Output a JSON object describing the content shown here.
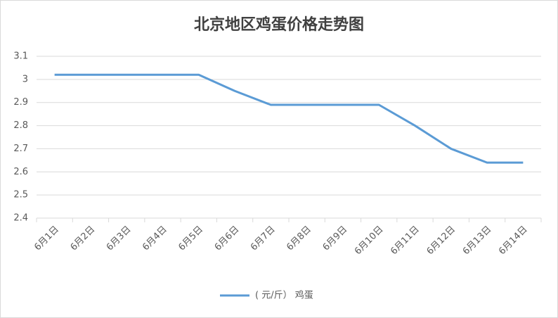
{
  "chart_data": {
    "type": "line",
    "title": "北京地区鸡蛋价格走势图",
    "categories": [
      "6月1日",
      "6月2日",
      "6月3日",
      "6月4日",
      "6月5日",
      "6月6日",
      "6月7日",
      "6月8日",
      "6月9日",
      "6月10日",
      "6月11日",
      "6月12日",
      "6月13日",
      "6月14日"
    ],
    "series": [
      {
        "name": "( 元/斤） 鸡蛋",
        "color": "#5b9bd5",
        "values": [
          3.02,
          3.02,
          3.02,
          3.02,
          3.02,
          2.95,
          2.89,
          2.89,
          2.89,
          2.89,
          2.8,
          2.7,
          2.64,
          2.64
        ]
      }
    ],
    "ylim": [
      2.4,
      3.1
    ],
    "yticks": [
      2.4,
      2.5,
      2.6,
      2.7,
      2.8,
      2.9,
      3,
      3.1
    ],
    "grid": true,
    "legend": "bottom"
  }
}
